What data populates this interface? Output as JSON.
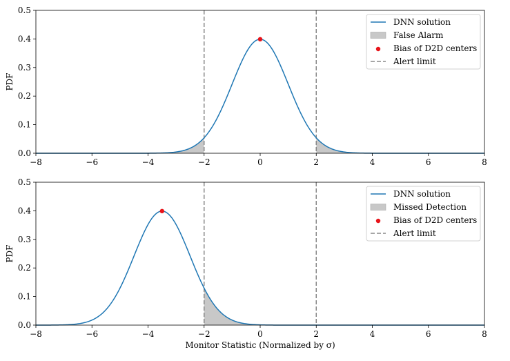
{
  "chart_data": [
    {
      "type": "line",
      "xlim": [
        -8,
        8
      ],
      "ylim": [
        0,
        0.5
      ],
      "xticks": [
        -8,
        -6,
        -4,
        -2,
        0,
        2,
        4,
        6,
        8
      ],
      "xtick_labels": [
        "−8",
        "−6",
        "−4",
        "−2",
        "0",
        "2",
        "4",
        "6",
        "8"
      ],
      "yticks": [
        0.0,
        0.1,
        0.2,
        0.3,
        0.4,
        0.5
      ],
      "ytick_labels": [
        "0.0",
        "0.1",
        "0.2",
        "0.3",
        "0.4",
        "0.5"
      ],
      "ylabel": "PDF",
      "xlabel": "",
      "grid": false,
      "legend_position": "top-right",
      "series": [
        {
          "name": "DNN solution",
          "kind": "normal-pdf",
          "mean": 0,
          "std": 1,
          "color": "#1f77b4"
        }
      ],
      "shaded": {
        "name": "False Alarm",
        "regions": [
          [
            -8,
            -2
          ],
          [
            2,
            8
          ]
        ],
        "color": "#c8c8c8"
      },
      "points": {
        "name": "Bias of D2D centers",
        "x": [
          0
        ],
        "y": [
          0.399
        ],
        "color": "#e8141a"
      },
      "vlines": {
        "name": "Alert limit",
        "x": [
          -2,
          2
        ],
        "color": "#888888"
      },
      "legend": [
        "DNN solution",
        "False Alarm",
        "Bias of D2D centers",
        "Alert limit"
      ]
    },
    {
      "type": "line",
      "xlim": [
        -8,
        8
      ],
      "ylim": [
        0,
        0.5
      ],
      "xticks": [
        -8,
        -6,
        -4,
        -2,
        0,
        2,
        4,
        6,
        8
      ],
      "xtick_labels": [
        "−8",
        "−6",
        "−4",
        "−2",
        "0",
        "2",
        "4",
        "6",
        "8"
      ],
      "yticks": [
        0.0,
        0.1,
        0.2,
        0.3,
        0.4,
        0.5
      ],
      "ytick_labels": [
        "0.0",
        "0.1",
        "0.2",
        "0.3",
        "0.4",
        "0.5"
      ],
      "ylabel": "PDF",
      "xlabel": "Monitor Statistic (Normalized by σ)",
      "grid": false,
      "legend_position": "top-right",
      "series": [
        {
          "name": "DNN solution",
          "kind": "normal-pdf",
          "mean": -3.5,
          "std": 1,
          "color": "#1f77b4"
        }
      ],
      "shaded": {
        "name": "Missed Detection",
        "regions": [
          [
            -2,
            8
          ]
        ],
        "color": "#c8c8c8"
      },
      "points": {
        "name": "Bias of D2D centers",
        "x": [
          -3.5
        ],
        "y": [
          0.399
        ],
        "color": "#e8141a"
      },
      "vlines": {
        "name": "Alert limit",
        "x": [
          -2,
          2
        ],
        "color": "#888888"
      },
      "legend": [
        "DNN solution",
        "Missed Detection",
        "Bias of D2D centers",
        "Alert limit"
      ]
    }
  ]
}
